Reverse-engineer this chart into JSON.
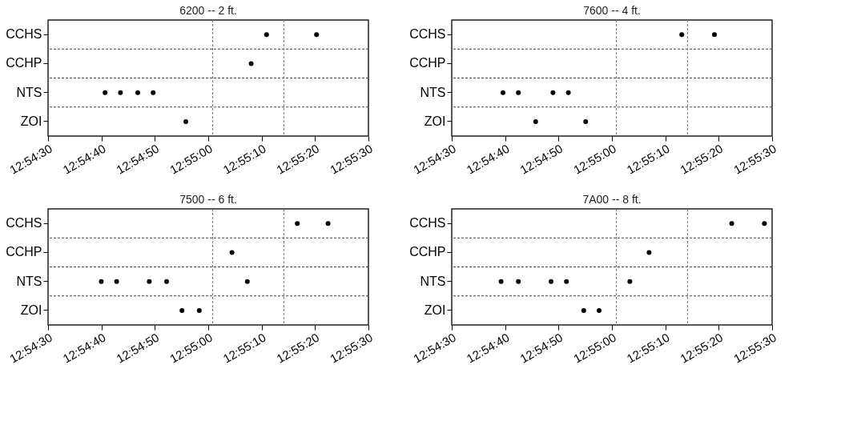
{
  "chart_data": [
    {
      "type": "scatter",
      "orientation": "horizontal",
      "title": "6200 -- 2 ft.",
      "categories": [
        "CCHS",
        "CCHP",
        "NTS",
        "ZOI"
      ],
      "marker": "circle",
      "grid": "y",
      "xlim": [
        12.908333,
        12.925
      ],
      "xticks": [
        {
          "value": 12.908333,
          "label": "12:54:30"
        },
        {
          "value": 12.911111,
          "label": "12:54:40"
        },
        {
          "value": 12.913889,
          "label": "12:54:50"
        },
        {
          "value": 12.916667,
          "label": "12:55:00"
        },
        {
          "value": 12.919444,
          "label": "12:55:10"
        },
        {
          "value": 12.922222,
          "label": "12:55:20"
        },
        {
          "value": 12.925,
          "label": "12:55:30"
        }
      ],
      "series": [
        {
          "color": "#000000",
          "values": [
            12.9197,
            12.9189,
            12.9113,
            12.9155
          ]
        },
        {
          "color": "#000000",
          "values": [
            12.9223,
            null,
            12.9121,
            null
          ]
        },
        {
          "color": "#000000",
          "values": [
            null,
            null,
            12.913,
            null
          ]
        },
        {
          "color": "#000000",
          "values": [
            null,
            null,
            12.9138,
            null
          ]
        }
      ],
      "ref_lines": [
        {
          "axis": "x",
          "value": 12.9169,
          "color": "#777777",
          "line_style": "dashed"
        },
        {
          "axis": "x",
          "value": 12.9206,
          "color": "#777777",
          "line_style": "dashed"
        }
      ]
    },
    {
      "type": "scatter",
      "orientation": "horizontal",
      "title": "7600 -- 4 ft.",
      "categories": [
        "CCHS",
        "CCHP",
        "NTS",
        "ZOI"
      ],
      "marker": "circle",
      "grid": "y",
      "xlim": [
        12.908333,
        12.925
      ],
      "xticks": [
        {
          "value": 12.908333,
          "label": "12:54:30"
        },
        {
          "value": 12.911111,
          "label": "12:54:40"
        },
        {
          "value": 12.913889,
          "label": "12:54:50"
        },
        {
          "value": 12.916667,
          "label": "12:55:00"
        },
        {
          "value": 12.919444,
          "label": "12:55:10"
        },
        {
          "value": 12.922222,
          "label": "12:55:20"
        },
        {
          "value": 12.925,
          "label": "12:55:30"
        }
      ],
      "series": [
        {
          "color": "#000000",
          "values": [
            12.9203,
            null,
            12.911,
            12.9127
          ]
        },
        {
          "color": "#000000",
          "values": [
            12.922,
            null,
            12.9118,
            12.9153
          ]
        },
        {
          "color": "#000000",
          "values": [
            null,
            null,
            12.9136,
            null
          ]
        },
        {
          "color": "#000000",
          "values": [
            null,
            null,
            12.9144,
            null
          ]
        }
      ],
      "ref_lines": [
        {
          "axis": "x",
          "value": 12.9169,
          "color": "#777777",
          "line_style": "dashed"
        },
        {
          "axis": "x",
          "value": 12.9206,
          "color": "#777777",
          "line_style": "dashed"
        }
      ]
    },
    {
      "type": "scatter",
      "orientation": "horizontal",
      "title": "7500 -- 6 ft.",
      "categories": [
        "CCHS",
        "CCHP",
        "NTS",
        "ZOI"
      ],
      "marker": "circle",
      "grid": "y",
      "xlim": [
        12.908333,
        12.925
      ],
      "xticks": [
        {
          "value": 12.908333,
          "label": "12:54:30"
        },
        {
          "value": 12.911111,
          "label": "12:54:40"
        },
        {
          "value": 12.913889,
          "label": "12:54:50"
        },
        {
          "value": 12.916667,
          "label": "12:55:00"
        },
        {
          "value": 12.919444,
          "label": "12:55:10"
        },
        {
          "value": 12.922222,
          "label": "12:55:20"
        },
        {
          "value": 12.925,
          "label": "12:55:30"
        }
      ],
      "series": [
        {
          "color": "#000000",
          "values": [
            12.9213,
            12.9179,
            12.9111,
            12.9153
          ]
        },
        {
          "color": "#000000",
          "values": [
            12.9229,
            null,
            12.9119,
            12.9162
          ]
        },
        {
          "color": "#000000",
          "values": [
            null,
            null,
            12.9136,
            null
          ]
        },
        {
          "color": "#000000",
          "values": [
            null,
            null,
            12.9145,
            null
          ]
        },
        {
          "color": "#000000",
          "values": [
            null,
            null,
            12.9187,
            null
          ]
        }
      ],
      "ref_lines": [
        {
          "axis": "x",
          "value": 12.9169,
          "color": "#777777",
          "line_style": "dashed"
        },
        {
          "axis": "x",
          "value": 12.9206,
          "color": "#777777",
          "line_style": "dashed"
        }
      ]
    },
    {
      "type": "scatter",
      "orientation": "horizontal",
      "title": "7A00 -- 8 ft.",
      "categories": [
        "CCHS",
        "CCHP",
        "NTS",
        "ZOI"
      ],
      "marker": "circle",
      "grid": "y",
      "xlim": [
        12.908333,
        12.925
      ],
      "xticks": [
        {
          "value": 12.908333,
          "label": "12:54:30"
        },
        {
          "value": 12.911111,
          "label": "12:54:40"
        },
        {
          "value": 12.913889,
          "label": "12:54:50"
        },
        {
          "value": 12.916667,
          "label": "12:55:00"
        },
        {
          "value": 12.919444,
          "label": "12:55:10"
        },
        {
          "value": 12.922222,
          "label": "12:55:20"
        },
        {
          "value": 12.925,
          "label": "12:55:30"
        }
      ],
      "series": [
        {
          "color": "#000000",
          "values": [
            12.9229,
            12.9186,
            12.9109,
            12.9152
          ]
        },
        {
          "color": "#000000",
          "values": [
            12.9246,
            null,
            12.9118,
            12.916
          ]
        },
        {
          "color": "#000000",
          "values": [
            null,
            null,
            12.9135,
            null
          ]
        },
        {
          "color": "#000000",
          "values": [
            null,
            null,
            12.9143,
            null
          ]
        },
        {
          "color": "#000000",
          "values": [
            null,
            null,
            12.9176,
            null
          ]
        }
      ],
      "ref_lines": [
        {
          "axis": "x",
          "value": 12.9169,
          "color": "#777777",
          "line_style": "dashed"
        },
        {
          "axis": "x",
          "value": 12.9206,
          "color": "#777777",
          "line_style": "dashed"
        }
      ]
    }
  ]
}
